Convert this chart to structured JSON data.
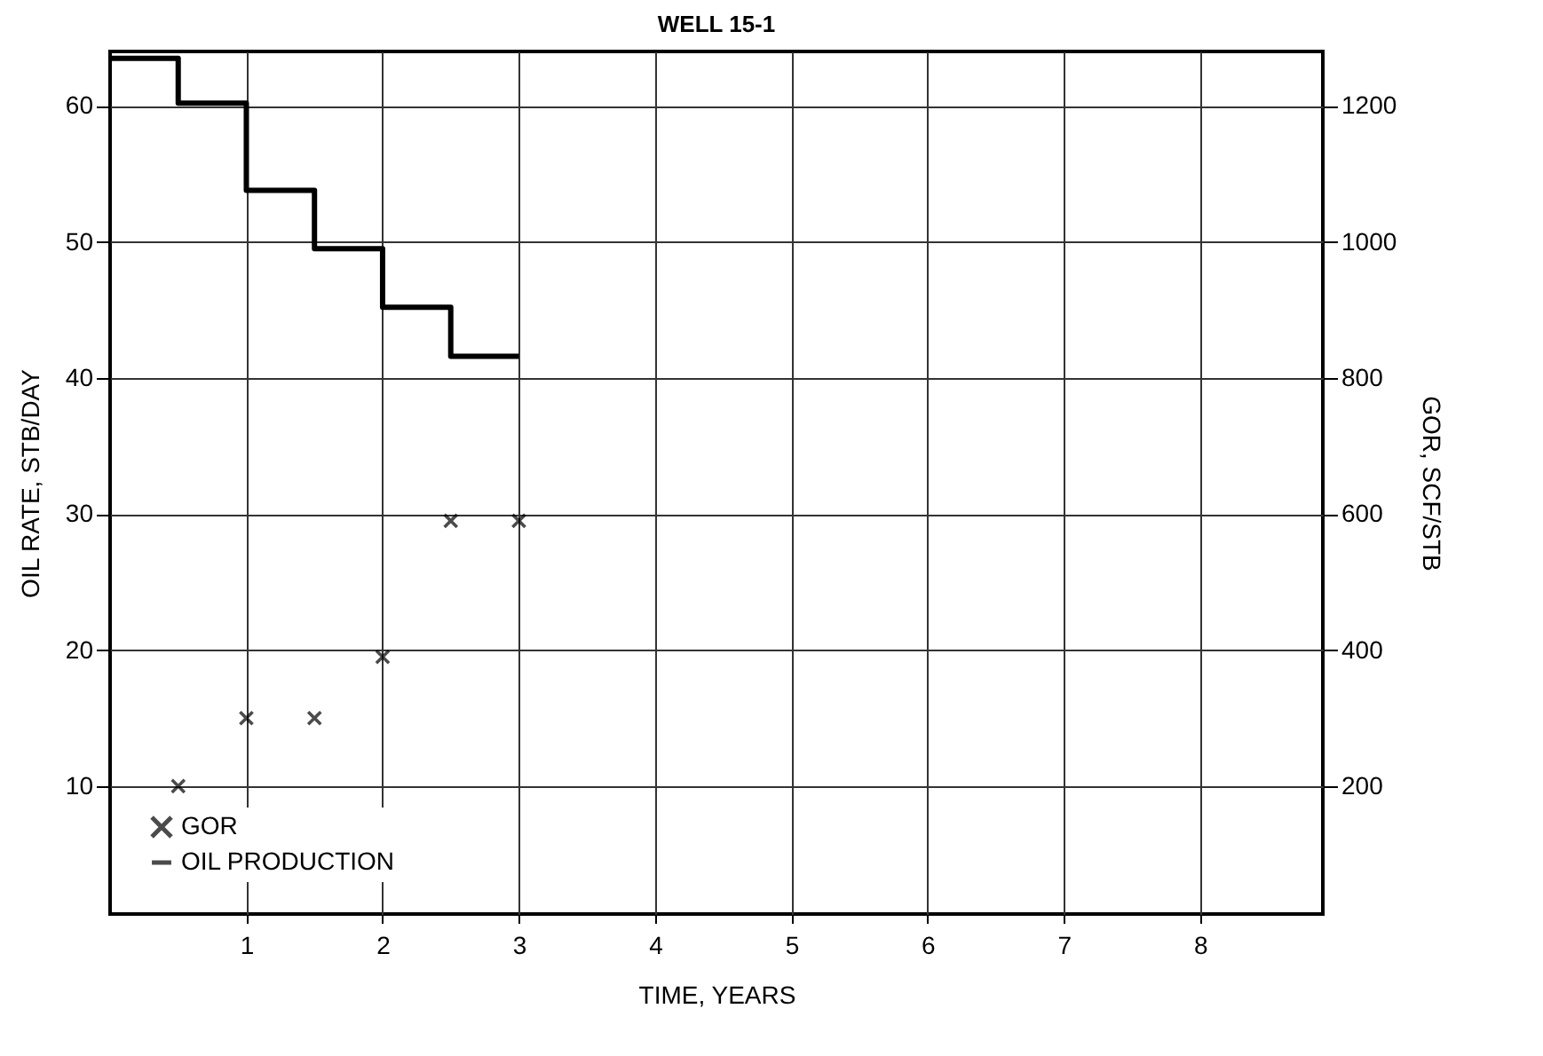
{
  "chart_data": {
    "type": "step",
    "title": "WELL 15-1",
    "xlabel": "TIME, YEARS",
    "ylabel": "OIL RATE, STB/DAY",
    "y2label": "GOR, SCF/STB",
    "xlim": [
      0,
      8.9
    ],
    "xticks": [
      1,
      2,
      3,
      4,
      5,
      6,
      7,
      8
    ],
    "ylim": [
      0.6,
      64
    ],
    "yticks": [
      10,
      20,
      30,
      40,
      50,
      60
    ],
    "y2lim": [
      12,
      1280
    ],
    "y2ticks": [
      200,
      400,
      600,
      800,
      1000,
      1200
    ],
    "grid": true,
    "legend": "bottom left",
    "series": [
      {
        "name": "GOR",
        "type": "scatter",
        "axis": "y2",
        "marker": "cross",
        "color": "#000000",
        "x": [
          0.5,
          1,
          1.5,
          2,
          2.5,
          3
        ],
        "values": [
          200,
          300,
          300,
          390,
          590,
          590
        ]
      },
      {
        "name": "OIL PRODUCTION",
        "color": "#000000",
        "x": [
          0,
          0.5,
          1,
          1.5,
          2,
          2.5,
          3
        ],
        "values": [
          63.5,
          60.2,
          53.8,
          49.5,
          45.2,
          41.6,
          41.6
        ]
      }
    ]
  }
}
